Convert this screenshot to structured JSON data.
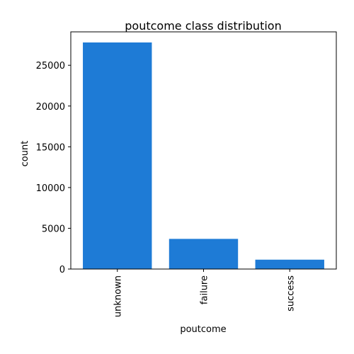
{
  "chart_data": {
    "type": "bar",
    "title": "poutcome class distribution",
    "xlabel": "poutcome",
    "ylabel": "count",
    "categories": [
      "unknown",
      "failure",
      "success"
    ],
    "values": [
      27800,
      3700,
      1150
    ],
    "ylim": [
      0,
      29100
    ],
    "yticks": [
      0,
      5000,
      10000,
      15000,
      20000,
      25000
    ],
    "ytick_labels": [
      "0",
      "5000",
      "10000",
      "15000",
      "20000",
      "25000"
    ],
    "bar_color": "#1e7bd6",
    "grid": false,
    "legend": "none"
  }
}
